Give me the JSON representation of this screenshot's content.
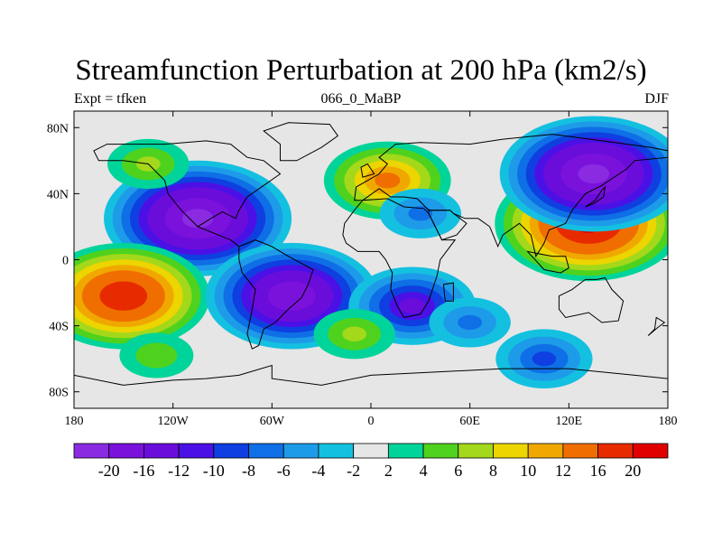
{
  "header": {
    "title": "Streamfunction Perturbation at 200 hPa (km2/s)",
    "left": "Expt = tfken",
    "center": "066_0_MaBP",
    "right": "DJF"
  },
  "chart_data": {
    "type": "heatmap",
    "title": "Streamfunction Perturbation at 200 hPa (km2/s)",
    "units": "km2/s",
    "projection": "cylindrical equidistant",
    "xlim": [
      -180,
      180
    ],
    "ylim": [
      -90,
      90
    ],
    "x_ticks": [
      {
        "value": -180,
        "label": "180"
      },
      {
        "value": -120,
        "label": "120W"
      },
      {
        "value": -60,
        "label": "60W"
      },
      {
        "value": 0,
        "label": "0"
      },
      {
        "value": 60,
        "label": "60E"
      },
      {
        "value": 120,
        "label": "120E"
      },
      {
        "value": 180,
        "label": "180"
      }
    ],
    "y_ticks": [
      {
        "value": 80,
        "label": "80N"
      },
      {
        "value": 40,
        "label": "40N"
      },
      {
        "value": 0,
        "label": "0"
      },
      {
        "value": -40,
        "label": "40S"
      },
      {
        "value": -80,
        "label": "80S"
      }
    ],
    "contour_levels": [
      -20,
      -16,
      -12,
      -10,
      -8,
      -6,
      -4,
      -2,
      2,
      4,
      6,
      8,
      10,
      12,
      16,
      20
    ],
    "colorbar_colors": [
      "#8a2be2",
      "#7a12dc",
      "#6a0ddb",
      "#4b10e6",
      "#0f3fe0",
      "#0f6fe6",
      "#1e9be8",
      "#14c0e0",
      "#e6e6e6",
      "#00d49a",
      "#4fd21e",
      "#a4d81a",
      "#ecd500",
      "#f0a800",
      "#f06e00",
      "#e82a00",
      "#e00000"
    ],
    "features": [
      {
        "lon": -105,
        "lat": 25,
        "peak": -20
      },
      {
        "lon": -150,
        "lat": -22,
        "peak": 18
      },
      {
        "lon": 132,
        "lat": 22,
        "peak": 20
      },
      {
        "lon": 135,
        "lat": 52,
        "peak": -20
      },
      {
        "lon": 10,
        "lat": 48,
        "peak": 12
      },
      {
        "lon": -48,
        "lat": -22,
        "peak": -18
      },
      {
        "lon": 25,
        "lat": -28,
        "peak": -12
      },
      {
        "lon": -135,
        "lat": 58,
        "peak": 6
      },
      {
        "lon": 60,
        "lat": -38,
        "peak": -6
      },
      {
        "lon": -10,
        "lat": -45,
        "peak": 6
      },
      {
        "lon": -130,
        "lat": -58,
        "peak": 5
      },
      {
        "lon": 105,
        "lat": -60,
        "peak": -8
      },
      {
        "lon": 30,
        "lat": 28,
        "peak": -6
      }
    ]
  }
}
